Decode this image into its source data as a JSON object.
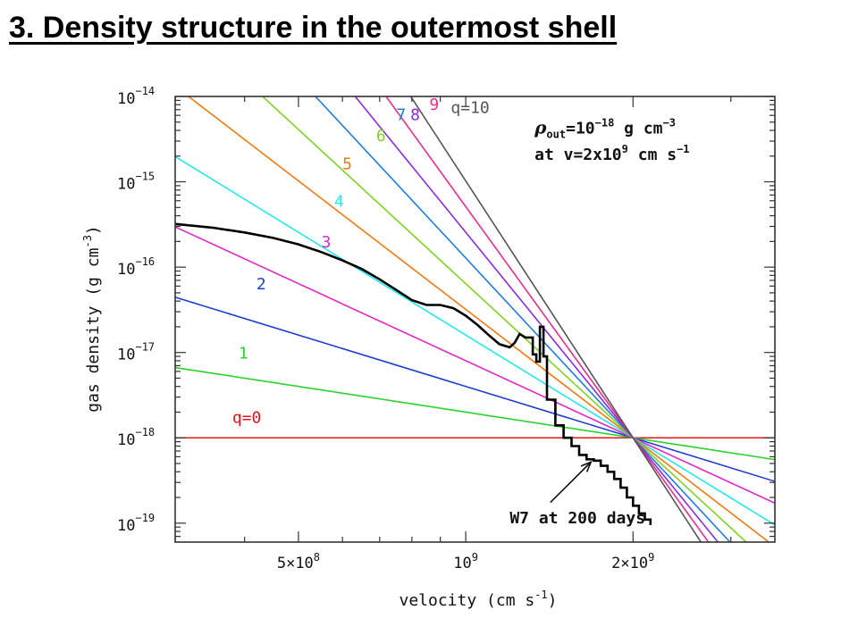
{
  "slide": {
    "title": "3. Density structure in the outermost shell"
  },
  "chart_data": {
    "type": "line",
    "xlabel": {
      "main": "velocity  (cm s",
      "sup": "-1",
      "close": ")"
    },
    "ylabel": {
      "main": "gas density  (g cm",
      "sup": "-3",
      "close": ")"
    },
    "xscale": "log",
    "yscale": "log",
    "xlim": [
      300000000,
      3600000000
    ],
    "ylim": [
      6e-20,
      1e-14
    ],
    "x_ticks": [
      {
        "value": 500000000,
        "mant": "5×10",
        "exp": "8"
      },
      {
        "value": 1000000000,
        "mant": "10",
        "exp": "9"
      },
      {
        "value": 2000000000,
        "mant": "2×10",
        "exp": "9"
      }
    ],
    "y_ticks": [
      {
        "value": 1e-14,
        "base": "10",
        "exp": "−14"
      },
      {
        "value": 1e-15,
        "base": "10",
        "exp": "−15"
      },
      {
        "value": 1e-16,
        "base": "10",
        "exp": "−16"
      },
      {
        "value": 1e-17,
        "base": "10",
        "exp": "−17"
      },
      {
        "value": 1e-18,
        "base": "10",
        "exp": "−18"
      },
      {
        "value": 1e-19,
        "base": "10",
        "exp": "−19"
      }
    ],
    "pivot": {
      "v": 2000000000,
      "rho": 1e-18
    },
    "model_series": [
      {
        "q": 0,
        "label": "q=0",
        "color": "#e8121c",
        "label_v": 380000000,
        "label_rho": 1.5e-18
      },
      {
        "q": 1,
        "label": "1",
        "color": "#2ed22e",
        "label_v": 390000000,
        "label_rho": 8.5e-18
      },
      {
        "q": 2,
        "label": "2",
        "color": "#1f3fd0",
        "label_v": 420000000,
        "label_rho": 5.5e-17
      },
      {
        "q": 3,
        "label": "3",
        "color": "#e028c8",
        "label_v": 550000000,
        "label_rho": 1.7e-16
      },
      {
        "q": 4,
        "label": "4",
        "color": "#26e6ea",
        "label_v": 580000000,
        "label_rho": 5.1e-16
      },
      {
        "q": 5,
        "label": "5",
        "color": "#f07a10",
        "label_v": 600000000,
        "label_rho": 1.4e-15
      },
      {
        "q": 6,
        "label": "6",
        "color": "#7ed321",
        "label_v": 690000000,
        "label_rho": 3e-15
      },
      {
        "q": 7,
        "label": "7",
        "color": "#1e7fe0",
        "label_v": 750000000,
        "label_rho": 5.3e-15
      },
      {
        "q": 8,
        "label": "8",
        "color": "#8a2be2",
        "label_v": 795000000,
        "label_rho": 5.3e-15
      },
      {
        "q": 9,
        "label": "9",
        "color": "#e82d8c",
        "label_v": 860000000,
        "label_rho": 7e-15
      },
      {
        "q": 10,
        "label": "q=10",
        "color": "#555555",
        "label_v": 940000000,
        "label_rho": 6.4e-15
      }
    ],
    "legend_note": {
      "line1": {
        "rho": "ρ",
        "sub": "out",
        "mid": "=10",
        "exp": "−18",
        "unit": " g cm",
        "unit_exp": "−3"
      },
      "line2": {
        "pre": "at v=2x10",
        "exp": "9",
        "mid": " cm s",
        "unit_exp": "−1"
      },
      "v": 1330000000,
      "rho_line1": 3.7e-15,
      "rho_line2": 1.8e-15
    },
    "w7_series": {
      "name": "W7 at 200 days",
      "color": "#000000",
      "points": [
        [
          300000000,
          3.2e-16
        ],
        [
          350000000,
          2.9e-16
        ],
        [
          400000000,
          2.55e-16
        ],
        [
          450000000,
          2.2e-16
        ],
        [
          500000000,
          1.85e-16
        ],
        [
          550000000,
          1.5e-16
        ],
        [
          600000000,
          1.2e-16
        ],
        [
          650000000,
          9.5e-17
        ],
        [
          700000000,
          7.2e-17
        ],
        [
          750000000,
          5.4e-17
        ],
        [
          800000000,
          4.1e-17
        ],
        [
          850000000,
          3.6e-17
        ],
        [
          900000000,
          3.6e-17
        ],
        [
          950000000,
          3.3e-17
        ],
        [
          1000000000,
          2.7e-17
        ],
        [
          1050000000,
          2.1e-17
        ],
        [
          1100000000,
          1.6e-17
        ],
        [
          1150000000,
          1.25e-17
        ],
        [
          1200000000,
          1.15e-17
        ],
        [
          1225000000,
          1.3e-17
        ],
        [
          1250000000,
          1.65e-17
        ],
        [
          1280000000,
          1.5e-17
        ],
        [
          1320000000,
          9.5e-18
        ],
        [
          1340000000,
          7.8e-18
        ],
        [
          1360000000,
          2e-17
        ],
        [
          1380000000,
          9e-18
        ],
        [
          1400000000,
          2.8e-18
        ],
        [
          1450000000,
          1.4e-18
        ],
        [
          1500000000,
          1e-18
        ],
        [
          1550000000,
          8e-19
        ],
        [
          1600000000,
          6.3e-19
        ],
        [
          1650000000,
          5.6e-19
        ],
        [
          1700000000,
          5.4e-19
        ],
        [
          1750000000,
          4.7e-19
        ],
        [
          1800000000,
          4e-19
        ],
        [
          1850000000,
          3.3e-19
        ],
        [
          1900000000,
          2.6e-19
        ],
        [
          1950000000,
          2e-19
        ],
        [
          2000000000,
          1.6e-19
        ],
        [
          2050000000,
          1.3e-19
        ],
        [
          2100000000,
          1.1e-19
        ],
        [
          2150000000,
          9.5e-20
        ]
      ]
    },
    "annotation": {
      "text": "W7 at 200 days",
      "text_v": 1200000000,
      "text_rho": 1e-19,
      "arrow_from_v": 1420000000,
      "arrow_from_rho": 1.75e-19,
      "arrow_to_v": 1680000000,
      "arrow_to_rho": 5.2e-19
    }
  }
}
